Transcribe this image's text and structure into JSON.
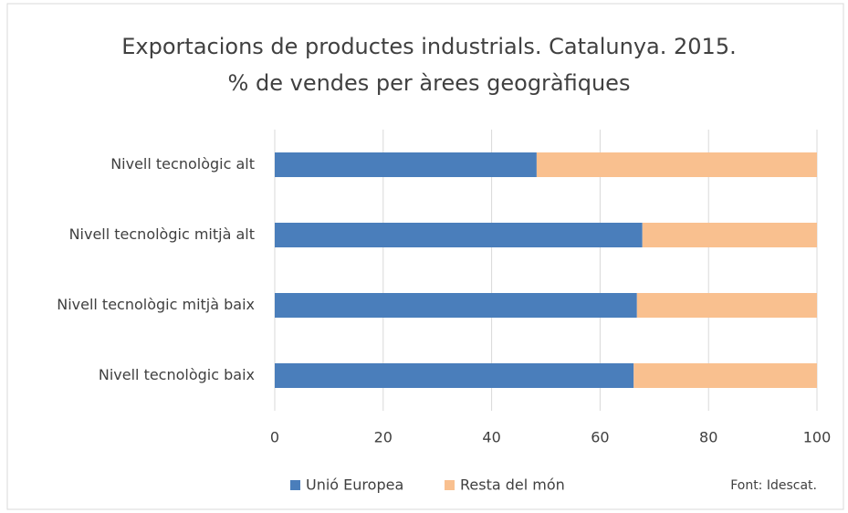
{
  "chart_data": {
    "type": "stacked_barh",
    "title": [
      "Exportacions de productes industrials. Catalunya. 2015.",
      "% de vendes per àrees geogràfiques"
    ],
    "categories": [
      "Nivell tecnològic alt",
      "Nivell tecnològic mitjà alt",
      "Nivell tecnològic mitjà baix",
      "Nivell tecnològic baix"
    ],
    "series": [
      {
        "name": "Unió Europea",
        "color": "#4a7ebb",
        "values": [
          48.3,
          67.8,
          66.8,
          66.2
        ]
      },
      {
        "name": "Resta del món",
        "color": "#f9c08f",
        "values": [
          51.7,
          32.2,
          33.2,
          33.8
        ]
      }
    ],
    "xlim": [
      0,
      100
    ],
    "xticks": [
      0,
      20,
      40,
      60,
      80,
      100
    ],
    "grid": true,
    "legend": "bottom",
    "source": "Font: Idescat."
  }
}
